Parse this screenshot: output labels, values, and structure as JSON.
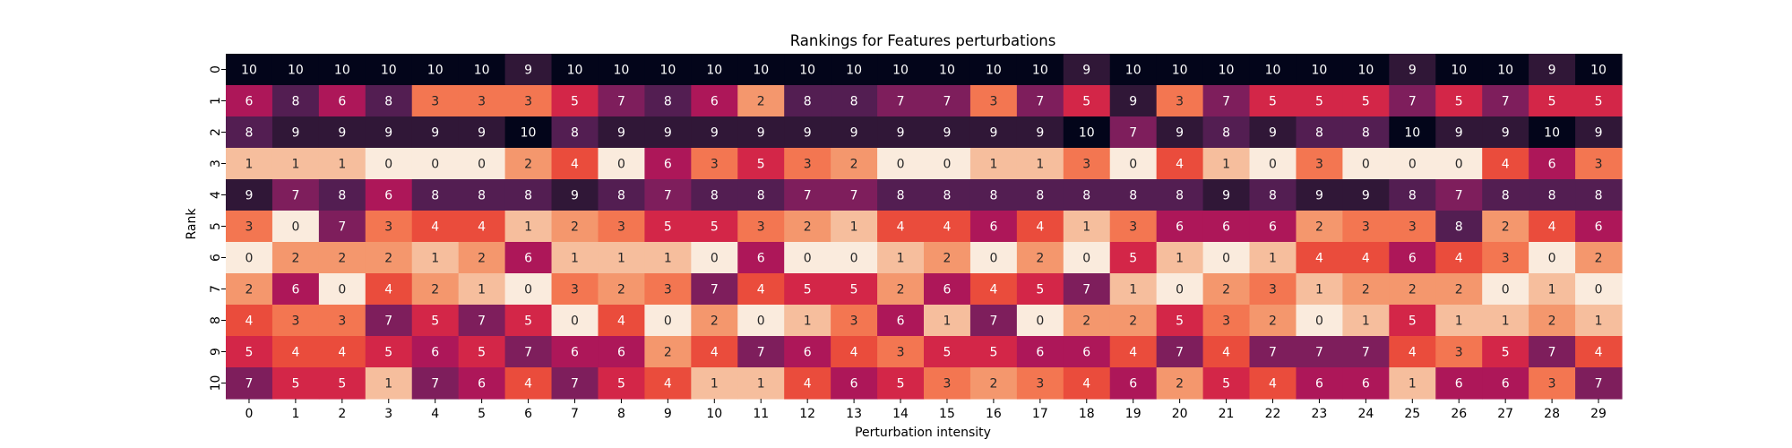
{
  "chart_data": {
    "type": "heatmap",
    "title": "Rankings for Features perturbations",
    "xlabel": "Perturbation intensity",
    "ylabel": "Rank",
    "x_ticks": [
      "0",
      "1",
      "2",
      "3",
      "4",
      "5",
      "6",
      "7",
      "8",
      "9",
      "10",
      "11",
      "12",
      "13",
      "14",
      "15",
      "16",
      "17",
      "18",
      "19",
      "20",
      "21",
      "22",
      "23",
      "24",
      "25",
      "26",
      "27",
      "28",
      "29"
    ],
    "y_ticks": [
      "0",
      "1",
      "2",
      "3",
      "4",
      "5",
      "6",
      "7",
      "8",
      "9",
      "10"
    ],
    "value_range": [
      0,
      10
    ],
    "colormap": "rocket",
    "annotated": true,
    "colorbar": false,
    "values": [
      [
        10,
        10,
        10,
        10,
        10,
        10,
        9,
        10,
        10,
        10,
        10,
        10,
        10,
        10,
        10,
        10,
        10,
        10,
        9,
        10,
        10,
        10,
        10,
        10,
        10,
        9,
        10,
        10,
        9,
        10
      ],
      [
        6,
        8,
        6,
        8,
        3,
        3,
        3,
        5,
        7,
        8,
        6,
        2,
        8,
        8,
        7,
        7,
        3,
        7,
        5,
        9,
        3,
        7,
        5,
        5,
        5,
        7,
        5,
        7,
        5,
        5
      ],
      [
        8,
        9,
        9,
        9,
        9,
        9,
        10,
        8,
        9,
        9,
        9,
        9,
        9,
        9,
        9,
        9,
        9,
        9,
        10,
        7,
        9,
        8,
        9,
        8,
        8,
        10,
        9,
        9,
        10,
        9
      ],
      [
        1,
        1,
        1,
        0,
        0,
        0,
        2,
        4,
        0,
        6,
        3,
        5,
        3,
        2,
        0,
        0,
        1,
        1,
        3,
        0,
        4,
        1,
        0,
        3,
        0,
        0,
        0,
        4,
        6,
        3
      ],
      [
        9,
        7,
        8,
        6,
        8,
        8,
        8,
        9,
        8,
        7,
        8,
        8,
        7,
        7,
        8,
        8,
        8,
        8,
        8,
        8,
        8,
        9,
        8,
        9,
        9,
        8,
        7,
        8,
        8,
        8
      ],
      [
        3,
        0,
        7,
        3,
        4,
        4,
        1,
        2,
        3,
        5,
        5,
        3,
        2,
        1,
        4,
        4,
        6,
        4,
        1,
        3,
        6,
        6,
        6,
        2,
        3,
        3,
        8,
        2,
        4,
        6
      ],
      [
        0,
        2,
        2,
        2,
        1,
        2,
        6,
        1,
        1,
        1,
        0,
        6,
        0,
        0,
        1,
        2,
        0,
        2,
        0,
        5,
        1,
        0,
        1,
        4,
        4,
        6,
        4,
        3,
        0,
        2
      ],
      [
        2,
        6,
        0,
        4,
        2,
        1,
        0,
        3,
        2,
        3,
        7,
        4,
        5,
        5,
        2,
        6,
        4,
        5,
        7,
        1,
        0,
        2,
        3,
        1,
        2,
        2,
        2,
        0,
        1,
        0
      ],
      [
        4,
        3,
        3,
        7,
        5,
        7,
        5,
        0,
        4,
        0,
        2,
        0,
        1,
        3,
        6,
        1,
        7,
        0,
        2,
        2,
        5,
        3,
        2,
        0,
        1,
        5,
        1,
        1,
        2,
        1
      ],
      [
        5,
        4,
        4,
        5,
        6,
        5,
        7,
        6,
        6,
        2,
        4,
        7,
        6,
        4,
        3,
        5,
        5,
        6,
        6,
        4,
        7,
        4,
        7,
        7,
        7,
        4,
        3,
        5,
        7,
        4
      ],
      [
        7,
        5,
        5,
        1,
        7,
        6,
        4,
        7,
        5,
        4,
        1,
        1,
        4,
        6,
        5,
        3,
        2,
        3,
        4,
        6,
        2,
        5,
        4,
        6,
        6,
        1,
        6,
        6,
        3,
        7
      ]
    ]
  }
}
